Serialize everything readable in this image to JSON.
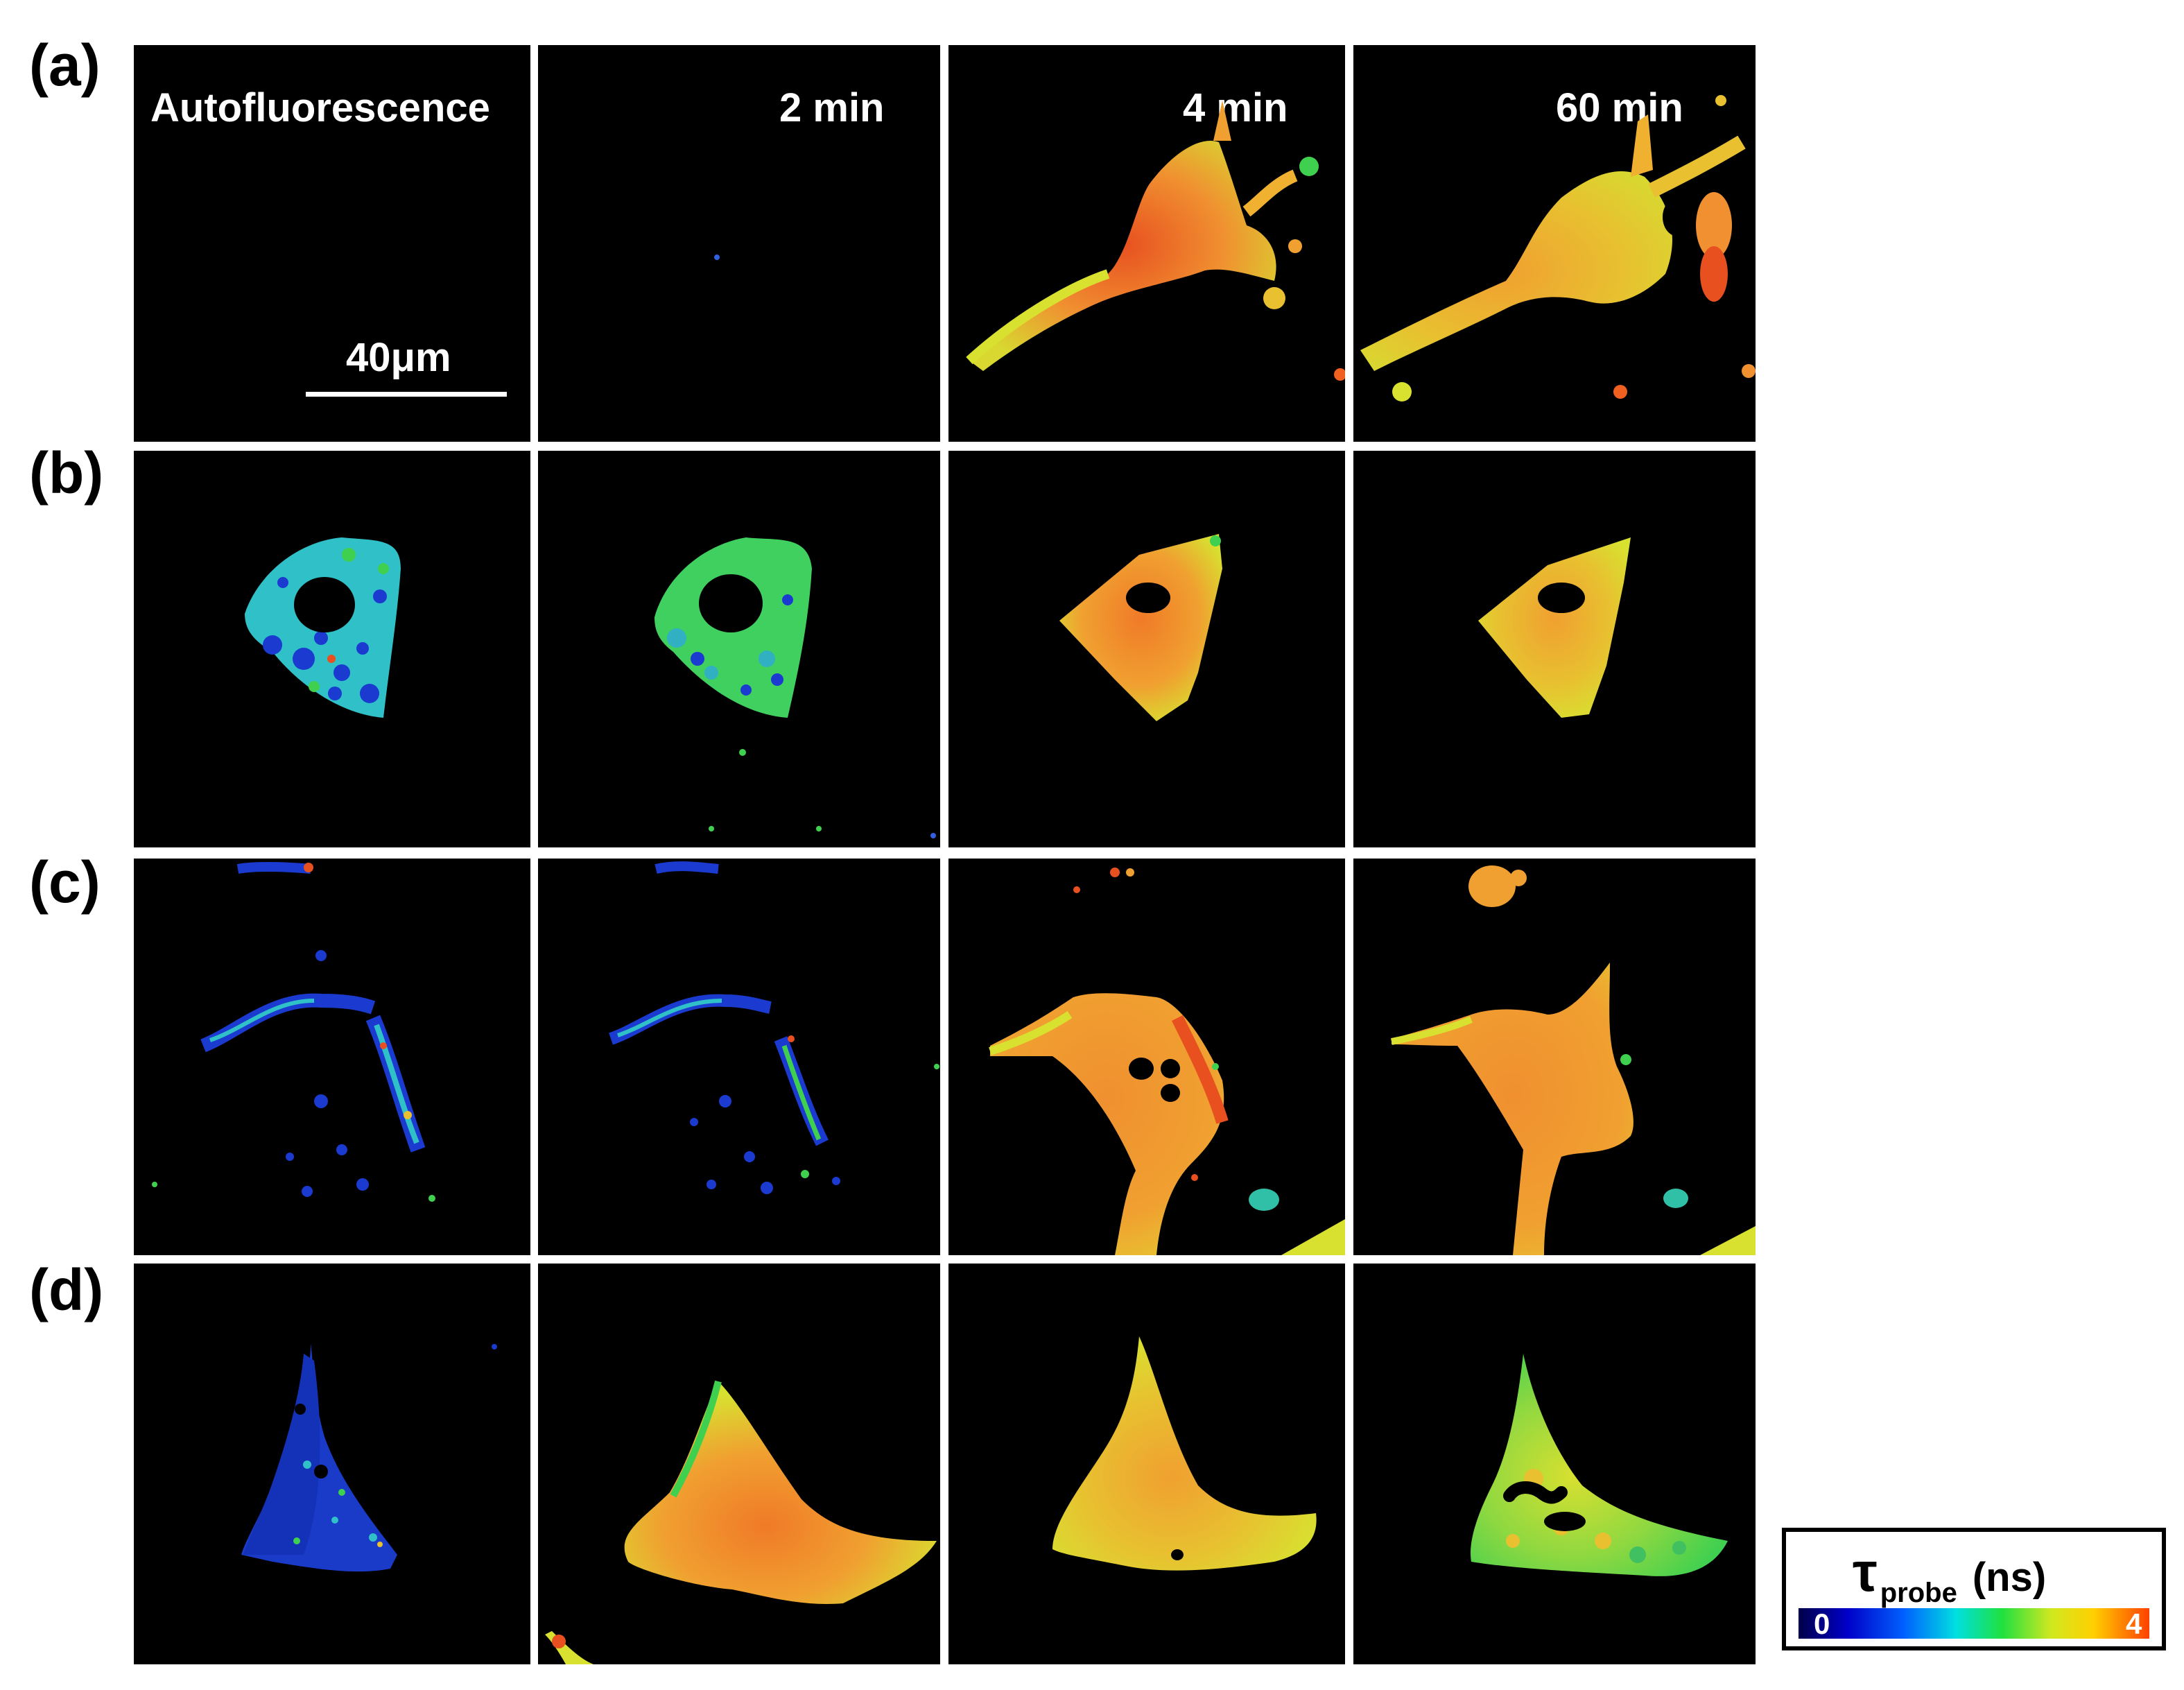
{
  "rows": [
    {
      "label": "(a)"
    },
    {
      "label": "(b)"
    },
    {
      "label": "(c)"
    },
    {
      "label": "(d)"
    }
  ],
  "column_titles": [
    "Autofluorescence",
    "2 min",
    "4 min",
    "60 min"
  ],
  "scale_bar": {
    "label": "40μm"
  },
  "colorbar": {
    "symbol": "τ",
    "subscript": "probe",
    "unit": "(ns)",
    "min_label": "0",
    "max_label": "4"
  },
  "colors": {
    "background": "#000000",
    "blue": "#1535d0",
    "cyan": "#30c8c8",
    "green": "#40d050",
    "yellow": "#d8e030",
    "orange": "#f0a030",
    "red": "#e85020"
  }
}
